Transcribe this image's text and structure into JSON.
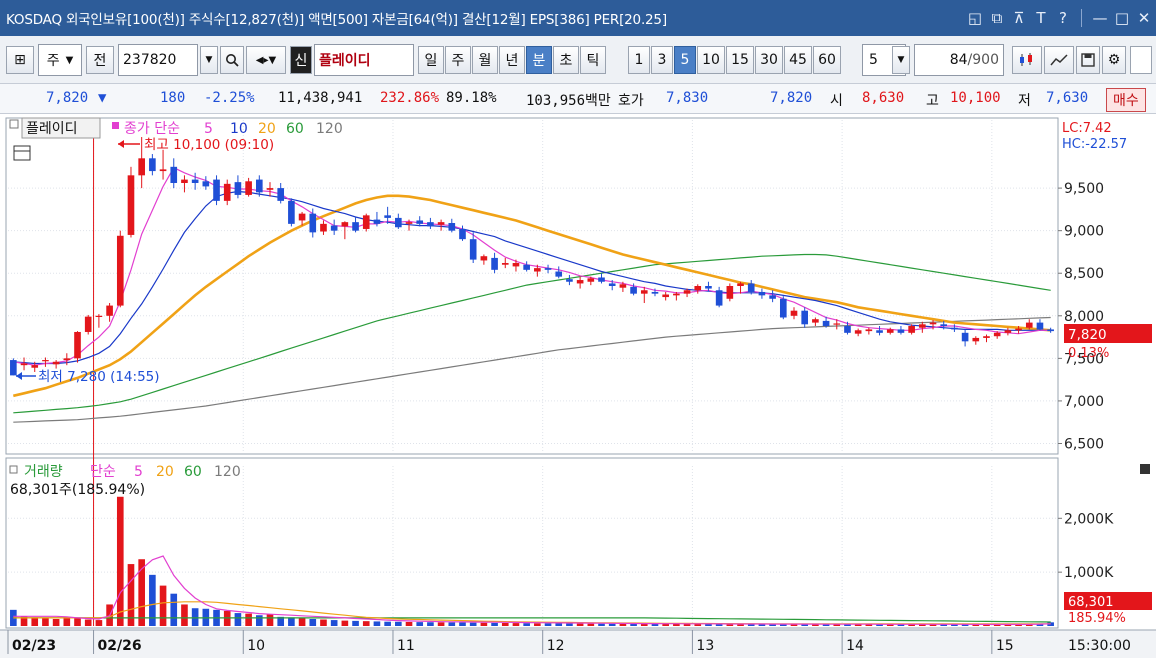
{
  "titlebar": {
    "text": "KOSDAQ 외국인보유[100(천)] 주식수[12,827(천)] 액면[500] 자본금[64(억)] 결산[12월] EPS[386] PER[20.25]",
    "icons": [
      "restore-icon",
      "copy-window-icon",
      "pin-icon",
      "font-icon",
      "help-icon",
      "minimize-icon",
      "maximize-icon",
      "close-icon"
    ],
    "font_glyph": "T",
    "help_glyph": "?"
  },
  "toolbar": {
    "type_select": "주",
    "market_label": "전",
    "code": "237820",
    "badge": "신",
    "stock_name": "플레이디",
    "period_buttons": [
      "일",
      "주",
      "월",
      "년",
      "분",
      "초",
      "틱"
    ],
    "active_period": "분",
    "interval_buttons": [
      "1",
      "3",
      "5",
      "10",
      "15",
      "30",
      "45",
      "60"
    ],
    "active_interval": "5",
    "interval_input": "5",
    "count_value": "84",
    "count_total": "/900"
  },
  "quote": {
    "price": "7,820",
    "arrow": "▼",
    "change": "180",
    "change_pct": "-2.25%",
    "volume": "11,438,941",
    "vol_ratio": "232.86%",
    "turnover": "89.18%",
    "amount": "103,956백만",
    "hoga_label": "호가",
    "ask": "7,830",
    "bid": "7,820",
    "open_label": "시",
    "open": "8,630",
    "high_label": "고",
    "high": "10,100",
    "low_label": "저",
    "low": "7,630",
    "buy_button": "매수"
  },
  "price_panel": {
    "name_tag": "플레이디",
    "indicator": "종가 단순",
    "ma_periods": [
      "5",
      "10",
      "20",
      "60",
      "120"
    ],
    "max_annotation": "최고 10,100 (09:10)",
    "min_annotation": "최저 7,280 (14:55)",
    "lc": "LC:7.42",
    "hc": "HC:-22.57",
    "y_ticks": [
      "9,500",
      "9,000",
      "8,500",
      "8,000",
      "7,500",
      "7,000",
      "6,500"
    ],
    "current_price": "7,820",
    "current_pct": "0.13%"
  },
  "volume_panel": {
    "title": "거래량",
    "indicator": "단순",
    "ma_periods": [
      "5",
      "20",
      "60",
      "120"
    ],
    "current": "68,301주(185.94%)",
    "y_ticks": [
      "2,000K",
      "1,000K"
    ],
    "current_value": "68,301",
    "current_pct": "185.94%"
  },
  "x_axis": {
    "labels": [
      "02/23",
      "02/26",
      "10",
      "11",
      "12",
      "13",
      "14",
      "15"
    ],
    "time": "15:30:00"
  },
  "colors": {
    "up": "#e3161b",
    "down": "#1f4fd6",
    "ma5": "#e23fd0",
    "ma10": "#1a39c9",
    "ma20": "#f0a216",
    "ma60": "#2a9b3a",
    "ma120": "#7b7b7b"
  },
  "chart_data": {
    "type": "candlestick",
    "x_unit": "5-minute bars",
    "y_unit": "KRW",
    "ylim": [
      6400,
      10300
    ],
    "candles": [
      [
        7480,
        7500,
        7300,
        7300
      ],
      [
        7420,
        7510,
        7360,
        7440
      ],
      [
        7390,
        7460,
        7340,
        7420
      ],
      [
        7470,
        7510,
        7400,
        7480
      ],
      [
        7430,
        7480,
        7380,
        7460
      ],
      [
        7480,
        7560,
        7420,
        7500
      ],
      [
        7500,
        7820,
        7450,
        7810
      ],
      [
        7810,
        8010,
        7780,
        7990
      ],
      [
        7990,
        8020,
        7860,
        8000
      ],
      [
        8000,
        8150,
        7930,
        8120
      ],
      [
        8120,
        9000,
        8100,
        8940
      ],
      [
        8950,
        9750,
        8920,
        9650
      ],
      [
        9650,
        10100,
        9500,
        9850
      ],
      [
        9850,
        9900,
        9650,
        9700
      ],
      [
        9700,
        9950,
        9600,
        9720
      ],
      [
        9750,
        9850,
        9500,
        9560
      ],
      [
        9560,
        9650,
        9450,
        9600
      ],
      [
        9600,
        9680,
        9480,
        9560
      ],
      [
        9580,
        9640,
        9480,
        9520
      ],
      [
        9600,
        9650,
        9300,
        9350
      ],
      [
        9350,
        9600,
        9300,
        9550
      ],
      [
        9570,
        9650,
        9380,
        9420
      ],
      [
        9420,
        9620,
        9400,
        9580
      ],
      [
        9600,
        9650,
        9400,
        9450
      ],
      [
        9480,
        9570,
        9400,
        9500
      ],
      [
        9500,
        9560,
        9320,
        9350
      ],
      [
        9350,
        9380,
        9050,
        9080
      ],
      [
        9120,
        9220,
        9060,
        9200
      ],
      [
        9200,
        9260,
        8920,
        8980
      ],
      [
        8990,
        9120,
        8950,
        9080
      ],
      [
        9060,
        9130,
        8950,
        9000
      ],
      [
        9050,
        9110,
        8900,
        9100
      ],
      [
        9100,
        9160,
        8980,
        9000
      ],
      [
        9020,
        9200,
        8990,
        9180
      ],
      [
        9130,
        9220,
        9050,
        9080
      ],
      [
        9180,
        9280,
        9080,
        9150
      ],
      [
        9150,
        9200,
        9020,
        9040
      ],
      [
        9080,
        9130,
        9000,
        9100
      ],
      [
        9120,
        9170,
        9050,
        9080
      ],
      [
        9100,
        9150,
        9020,
        9050
      ],
      [
        9070,
        9130,
        9000,
        9100
      ],
      [
        9090,
        9140,
        8980,
        9000
      ],
      [
        9020,
        9060,
        8880,
        8900
      ],
      [
        8900,
        8980,
        8620,
        8660
      ],
      [
        8650,
        8720,
        8600,
        8700
      ],
      [
        8680,
        8740,
        8500,
        8540
      ],
      [
        8600,
        8680,
        8560,
        8620
      ],
      [
        8580,
        8660,
        8520,
        8620
      ],
      [
        8600,
        8640,
        8520,
        8540
      ],
      [
        8520,
        8600,
        8460,
        8560
      ],
      [
        8560,
        8600,
        8500,
        8540
      ],
      [
        8520,
        8580,
        8440,
        8460
      ],
      [
        8430,
        8480,
        8360,
        8400
      ],
      [
        8380,
        8460,
        8320,
        8420
      ],
      [
        8400,
        8460,
        8360,
        8440
      ],
      [
        8450,
        8500,
        8380,
        8400
      ],
      [
        8380,
        8420,
        8300,
        8350
      ],
      [
        8330,
        8400,
        8280,
        8370
      ],
      [
        8340,
        8380,
        8240,
        8260
      ],
      [
        8260,
        8340,
        8150,
        8300
      ],
      [
        8280,
        8320,
        8230,
        8260
      ],
      [
        8220,
        8280,
        8180,
        8250
      ],
      [
        8240,
        8280,
        8180,
        8260
      ],
      [
        8260,
        8320,
        8220,
        8300
      ],
      [
        8300,
        8370,
        8260,
        8350
      ],
      [
        8350,
        8400,
        8290,
        8320
      ],
      [
        8300,
        8340,
        8100,
        8120
      ],
      [
        8200,
        8380,
        8170,
        8350
      ],
      [
        8350,
        8400,
        8260,
        8380
      ],
      [
        8380,
        8420,
        8250,
        8280
      ],
      [
        8280,
        8320,
        8200,
        8240
      ],
      [
        8240,
        8300,
        8160,
        8200
      ],
      [
        8200,
        8230,
        7960,
        7980
      ],
      [
        8000,
        8100,
        7960,
        8060
      ],
      [
        8060,
        8100,
        7860,
        7900
      ],
      [
        7920,
        7980,
        7880,
        7960
      ],
      [
        7940,
        7990,
        7860,
        7880
      ],
      [
        7900,
        7960,
        7840,
        7910
      ],
      [
        7880,
        7930,
        7780,
        7800
      ],
      [
        7790,
        7850,
        7760,
        7830
      ],
      [
        7820,
        7860,
        7780,
        7840
      ],
      [
        7830,
        7880,
        7770,
        7800
      ],
      [
        7800,
        7860,
        7780,
        7840
      ],
      [
        7840,
        7880,
        7780,
        7800
      ],
      [
        7800,
        7900,
        7780,
        7880
      ],
      [
        7860,
        7930,
        7800,
        7900
      ],
      [
        7900,
        7950,
        7840,
        7920
      ],
      [
        7900,
        7940,
        7840,
        7880
      ],
      [
        7860,
        7900,
        7810,
        7840
      ],
      [
        7800,
        7840,
        7640,
        7700
      ],
      [
        7700,
        7760,
        7660,
        7740
      ],
      [
        7740,
        7780,
        7690,
        7760
      ],
      [
        7760,
        7820,
        7730,
        7800
      ],
      [
        7800,
        7860,
        7770,
        7830
      ],
      [
        7830,
        7880,
        7790,
        7850
      ],
      [
        7860,
        7960,
        7840,
        7920
      ],
      [
        7920,
        7960,
        7830,
        7840
      ],
      [
        7840,
        7860,
        7800,
        7820
      ]
    ],
    "ma5": [
      7460,
      7440,
      7420,
      7440,
      7450,
      7470,
      7540,
      7650,
      7750,
      7880,
      8170,
      8540,
      8960,
      9240,
      9520,
      9740,
      9680,
      9630,
      9590,
      9520,
      9510,
      9490,
      9490,
      9470,
      9460,
      9430,
      9350,
      9280,
      9200,
      9130,
      9060,
      9050,
      9040,
      9080,
      9080,
      9110,
      9100,
      9110,
      9090,
      9080,
      9070,
      9060,
      9020,
      8950,
      8860,
      8770,
      8690,
      8640,
      8600,
      8580,
      8560,
      8540,
      8510,
      8470,
      8450,
      8420,
      8400,
      8380,
      8350,
      8330,
      8300,
      8290,
      8270,
      8270,
      8290,
      8300,
      8270,
      8260,
      8270,
      8290,
      8270,
      8250,
      8200,
      8160,
      8100,
      8040,
      7980,
      7950,
      7910,
      7880,
      7860,
      7850,
      7840,
      7830,
      7830,
      7850,
      7860,
      7880,
      7880,
      7860,
      7840,
      7830,
      7810,
      7800,
      7790,
      7810,
      7830,
      7830
    ],
    "ma10": [
      7460,
      7450,
      7440,
      7440,
      7440,
      7450,
      7470,
      7510,
      7560,
      7640,
      7790,
      7970,
      8140,
      8340,
      8550,
      8770,
      8980,
      9140,
      9290,
      9400,
      9440,
      9460,
      9450,
      9430,
      9410,
      9390,
      9370,
      9340,
      9300,
      9260,
      9230,
      9200,
      9160,
      9130,
      9110,
      9100,
      9080,
      9070,
      9060,
      9060,
      9050,
      9040,
      9020,
      8990,
      8960,
      8930,
      8880,
      8840,
      8800,
      8760,
      8720,
      8680,
      8640,
      8600,
      8560,
      8520,
      8490,
      8460,
      8430,
      8400,
      8380,
      8350,
      8330,
      8310,
      8300,
      8290,
      8280,
      8270,
      8270,
      8270,
      8270,
      8260,
      8240,
      8220,
      8200,
      8180,
      8150,
      8120,
      8080,
      8040,
      8000,
      7960,
      7930,
      7910,
      7890,
      7880,
      7870,
      7860,
      7850,
      7840,
      7840,
      7840,
      7840,
      7830,
      7830,
      7830,
      7830,
      7830
    ],
    "ma20": [
      7060,
      7090,
      7120,
      7150,
      7190,
      7230,
      7270,
      7320,
      7370,
      7420,
      7490,
      7580,
      7690,
      7800,
      7910,
      8020,
      8130,
      8240,
      8340,
      8430,
      8520,
      8610,
      8700,
      8780,
      8860,
      8930,
      9000,
      9060,
      9120,
      9170,
      9220,
      9270,
      9320,
      9360,
      9390,
      9410,
      9410,
      9400,
      9380,
      9360,
      9330,
      9300,
      9270,
      9240,
      9210,
      9180,
      9150,
      9120,
      9080,
      9040,
      9000,
      8960,
      8920,
      8880,
      8840,
      8800,
      8760,
      8720,
      8690,
      8660,
      8630,
      8600,
      8570,
      8540,
      8510,
      8480,
      8450,
      8420,
      8390,
      8370,
      8340,
      8310,
      8280,
      8250,
      8220,
      8200,
      8180,
      8160,
      8130,
      8100,
      8080,
      8060,
      8040,
      8020,
      8000,
      7980,
      7960,
      7940,
      7920,
      7910,
      7900,
      7890,
      7880,
      7870,
      7860,
      7850,
      7840,
      7830
    ],
    "ma60": [
      6860,
      6870,
      6880,
      6890,
      6900,
      6910,
      6920,
      6935,
      6950,
      6970,
      6990,
      7020,
      7060,
      7100,
      7140,
      7180,
      7220,
      7260,
      7300,
      7340,
      7380,
      7420,
      7460,
      7500,
      7540,
      7580,
      7620,
      7660,
      7700,
      7740,
      7780,
      7820,
      7860,
      7900,
      7940,
      7970,
      8000,
      8030,
      8060,
      8090,
      8120,
      8150,
      8180,
      8210,
      8240,
      8270,
      8300,
      8330,
      8360,
      8380,
      8400,
      8420,
      8440,
      8460,
      8480,
      8500,
      8520,
      8540,
      8560,
      8580,
      8600,
      8610,
      8620,
      8630,
      8640,
      8650,
      8660,
      8670,
      8680,
      8690,
      8700,
      8705,
      8710,
      8715,
      8720,
      8720,
      8715,
      8700,
      8680,
      8660,
      8640,
      8620,
      8600,
      8580,
      8560,
      8540,
      8520,
      8500,
      8480,
      8460,
      8440,
      8420,
      8400,
      8380,
      8360,
      8340,
      8320,
      8300
    ],
    "ma120": [
      6750,
      6755,
      6760,
      6765,
      6770,
      6775,
      6780,
      6790,
      6800,
      6810,
      6820,
      6835,
      6850,
      6865,
      6880,
      6895,
      6910,
      6925,
      6940,
      6960,
      6980,
      7000,
      7020,
      7040,
      7060,
      7080,
      7100,
      7120,
      7140,
      7160,
      7180,
      7200,
      7220,
      7240,
      7260,
      7280,
      7300,
      7320,
      7340,
      7360,
      7380,
      7400,
      7420,
      7440,
      7460,
      7480,
      7500,
      7520,
      7540,
      7560,
      7580,
      7600,
      7615,
      7630,
      7645,
      7660,
      7675,
      7690,
      7705,
      7720,
      7735,
      7750,
      7760,
      7770,
      7780,
      7790,
      7800,
      7810,
      7820,
      7830,
      7840,
      7850,
      7855,
      7860,
      7865,
      7870,
      7875,
      7880,
      7885,
      7890,
      7895,
      7900,
      7905,
      7910,
      7915,
      7920,
      7925,
      7930,
      7935,
      7940,
      7945,
      7950,
      7955,
      7960,
      7965,
      7970,
      7975,
      7980
    ],
    "volume": [
      300,
      180,
      160,
      150,
      130,
      170,
      140,
      120,
      110,
      400,
      2400,
      1150,
      1240,
      950,
      750,
      600,
      400,
      330,
      320,
      300,
      280,
      240,
      230,
      200,
      220,
      170,
      160,
      140,
      130,
      120,
      110,
      100,
      95,
      90,
      85,
      80,
      78,
      75,
      72,
      70,
      68,
      66,
      64,
      62,
      60,
      58,
      56,
      54,
      52,
      50,
      50,
      48,
      46,
      45,
      44,
      43,
      42,
      41,
      40,
      40,
      40,
      39,
      38,
      38,
      37,
      37,
      36,
      36,
      35,
      35,
      35,
      34,
      34,
      33,
      33,
      33,
      32,
      32,
      32,
      31,
      31,
      31,
      30,
      30,
      30,
      30,
      30,
      30,
      30,
      30,
      30,
      30,
      30,
      30,
      30,
      30,
      30,
      68
    ],
    "volume_ma5": [
      180,
      180,
      180,
      180,
      180,
      170,
      150,
      140,
      130,
      190,
      620,
      840,
      1060,
      1230,
      1300,
      940,
      700,
      520,
      400,
      320,
      290,
      270,
      250,
      230,
      220,
      210,
      200,
      190,
      180,
      170,
      160,
      150,
      140,
      130,
      120,
      110,
      100,
      95,
      90,
      85,
      80,
      78,
      76,
      74,
      72,
      70,
      68,
      66,
      64,
      62,
      60,
      58,
      56,
      55,
      54,
      52,
      50,
      48,
      46,
      45,
      44,
      43,
      42,
      41,
      40,
      40,
      39,
      38,
      38,
      37,
      37,
      36,
      36,
      35,
      35,
      35,
      34,
      34,
      33,
      33,
      33,
      32,
      32,
      32,
      31,
      31,
      31,
      31,
      31,
      31,
      30,
      30,
      30,
      30,
      30,
      30,
      35,
      40
    ],
    "volume_ma20": [
      150,
      150,
      150,
      150,
      150,
      150,
      150,
      150,
      150,
      170,
      260,
      310,
      360,
      400,
      430,
      440,
      450,
      450,
      450,
      440,
      420,
      400,
      380,
      360,
      340,
      320,
      300,
      280,
      260,
      240,
      220,
      200,
      180,
      160,
      150,
      140,
      130,
      125,
      120,
      115,
      110,
      105,
      100,
      95,
      90,
      86,
      82,
      78,
      75,
      72,
      70,
      68,
      66,
      64,
      62,
      60,
      58,
      56,
      55,
      54,
      52,
      50,
      49,
      48,
      47,
      46,
      45,
      44,
      43,
      42,
      41,
      40,
      40,
      40,
      40,
      40,
      40,
      40,
      40,
      40,
      40,
      40,
      40,
      40,
      40,
      40,
      40,
      40,
      40,
      40,
      40,
      40,
      40,
      40,
      40,
      40,
      40,
      40
    ],
    "volume_ma60": [
      150,
      150,
      150,
      150,
      150,
      150,
      150,
      150,
      150,
      150,
      150,
      150,
      150,
      150,
      150,
      150,
      150,
      150,
      150,
      150,
      150,
      150,
      150,
      150,
      150,
      150,
      150,
      150,
      150,
      150,
      150,
      150,
      150,
      150,
      150,
      150,
      150,
      150,
      150,
      150,
      150,
      150,
      150,
      150,
      150,
      150,
      150,
      150,
      150,
      150,
      150,
      150,
      150,
      150,
      150,
      150,
      150,
      150,
      150,
      150,
      148,
      146,
      144,
      142,
      140,
      138,
      136,
      134,
      132,
      130,
      128,
      126,
      124,
      122,
      120,
      118,
      116,
      114,
      112,
      110,
      108,
      106,
      104,
      102,
      100,
      98,
      96,
      94,
      92,
      90,
      88,
      86,
      84,
      82,
      80,
      78,
      76,
      74
    ]
  }
}
